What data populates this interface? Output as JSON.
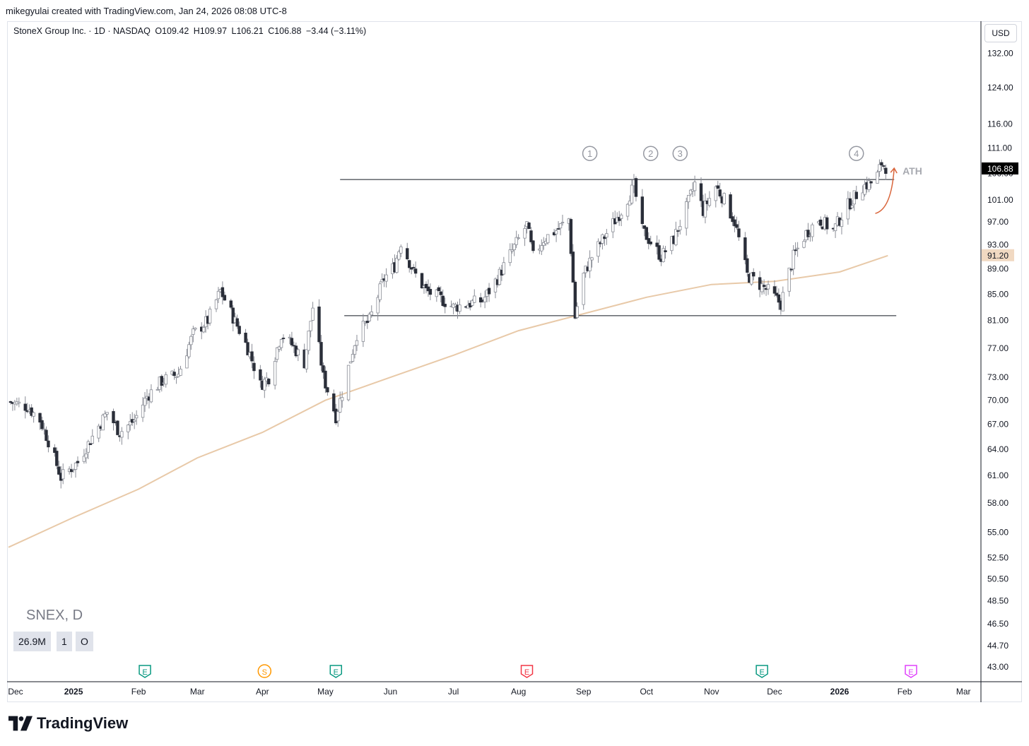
{
  "header": {
    "attribution": "mikegyulai created with TradingView.com, Jan 24, 2026 08:08 UTC-8"
  },
  "legend": {
    "symbol": "StoneX Group Inc. · 1D · NASDAQ",
    "open": "O109.42",
    "high": "H109.97",
    "low": "L106.21",
    "close": "C106.88",
    "change": "−3.44 (−3.11%)"
  },
  "currency_button": "USD",
  "symbol_watermark": "SNEX, D",
  "stats": {
    "volume": "26.9M",
    "one": "1",
    "zero": "O"
  },
  "footer": {
    "brand": "TradingView"
  },
  "colors": {
    "candle_up_fill": "#ffffff",
    "candle_down_fill": "#2a2e39",
    "candle_outline": "#8a8d96",
    "ma_line": "#e8c9a8",
    "level_lines": "#131722",
    "arrow": "#d9653b",
    "circle_labels": "#9598a1",
    "earnings_green": "#089981",
    "earnings_red": "#f23645",
    "split_orange": "#ff9800",
    "earnings_purple": "#e040fb"
  },
  "chart_data": {
    "type": "candlestick",
    "title": "StoneX Group Inc. · 1D · NASDAQ",
    "y_axis_labels": [
      "132.00",
      "124.00",
      "116.00",
      "111.00",
      "106.00",
      "101.00",
      "97.00",
      "93.00",
      "89.00",
      "85.00",
      "81.00",
      "77.00",
      "73.00",
      "70.00",
      "67.00",
      "64.00",
      "61.00",
      "58.00",
      "55.00",
      "52.50",
      "50.50",
      "48.50",
      "46.50",
      "44.70",
      "43.00"
    ],
    "x_axis_labels": [
      "Dec",
      "2025",
      "Feb",
      "Mar",
      "Apr",
      "May",
      "Jun",
      "Jul",
      "Aug",
      "Sep",
      "Oct",
      "Nov",
      "Dec",
      "2026",
      "Feb",
      "Mar"
    ],
    "bold_x_labels": [
      "2025",
      "2026"
    ],
    "y_scale": "log",
    "ylim": [
      42,
      140
    ],
    "x_range": [
      "2024-12-01",
      "2026-03-08"
    ],
    "last_price": {
      "value": 106.88,
      "label": "106.88"
    },
    "ma_value": {
      "value": 91.2,
      "label": "91.20"
    },
    "resistance_level": 104.8,
    "support_level": 81.7,
    "ath_label": "ATH",
    "touch_labels": [
      "1",
      "2",
      "3",
      "4"
    ],
    "events": [
      {
        "date": "2025-02-04",
        "glyph": "E",
        "color": "green"
      },
      {
        "date": "2025-04-02",
        "glyph": "S",
        "color": "orange"
      },
      {
        "date": "2025-05-06",
        "glyph": "E",
        "color": "green"
      },
      {
        "date": "2025-08-05",
        "glyph": "E",
        "color": "red"
      },
      {
        "date": "2025-11-25",
        "glyph": "E",
        "color": "green"
      },
      {
        "date": "2026-02-04",
        "glyph": "E",
        "color": "purple"
      }
    ],
    "price_path": [
      [
        "2024-12-01",
        69.8
      ],
      [
        "2024-12-10",
        69.2
      ],
      [
        "2024-12-16",
        67.5
      ],
      [
        "2024-12-20",
        65
      ],
      [
        "2024-12-26",
        60.8
      ],
      [
        "2025-01-03",
        62.5
      ],
      [
        "2025-01-10",
        65.5
      ],
      [
        "2025-01-17",
        68.5
      ],
      [
        "2025-01-23",
        66
      ],
      [
        "2025-01-30",
        67.5
      ],
      [
        "2025-02-05",
        70.5
      ],
      [
        "2025-02-12",
        72.5
      ],
      [
        "2025-02-20",
        73.5
      ],
      [
        "2025-02-27",
        79
      ],
      [
        "2025-03-06",
        81
      ],
      [
        "2025-03-12",
        85.5
      ],
      [
        "2025-03-18",
        81.5
      ],
      [
        "2025-03-25",
        77
      ],
      [
        "2025-03-31",
        72
      ],
      [
        "2025-04-04",
        73
      ],
      [
        "2025-04-10",
        79
      ],
      [
        "2025-04-15",
        77.5
      ],
      [
        "2025-04-21",
        75
      ],
      [
        "2025-04-25",
        83
      ],
      [
        "2025-04-30",
        73
      ],
      [
        "2025-05-06",
        68
      ],
      [
        "2025-05-10",
        72
      ],
      [
        "2025-05-16",
        79
      ],
      [
        "2025-05-22",
        81
      ],
      [
        "2025-05-29",
        87.5
      ],
      [
        "2025-06-03",
        89.5
      ],
      [
        "2025-06-06",
        93.5
      ],
      [
        "2025-06-12",
        88.5
      ],
      [
        "2025-06-18",
        85.5
      ],
      [
        "2025-06-24",
        84.5
      ],
      [
        "2025-07-01",
        83
      ],
      [
        "2025-07-08",
        83.5
      ],
      [
        "2025-07-15",
        84
      ],
      [
        "2025-07-22",
        87.5
      ],
      [
        "2025-07-29",
        92
      ],
      [
        "2025-08-05",
        96.5
      ],
      [
        "2025-08-08",
        91
      ],
      [
        "2025-08-13",
        94
      ],
      [
        "2025-08-19",
        95.5
      ],
      [
        "2025-08-25",
        97.5
      ],
      [
        "2025-08-28",
        81.5
      ],
      [
        "2025-09-01",
        88
      ],
      [
        "2025-09-05",
        91
      ],
      [
        "2025-09-12",
        95
      ],
      [
        "2025-09-19",
        99
      ],
      [
        "2025-09-25",
        103.5
      ],
      [
        "2025-09-29",
        95.5
      ],
      [
        "2025-10-03",
        93.5
      ],
      [
        "2025-10-08",
        91
      ],
      [
        "2025-10-14",
        94
      ],
      [
        "2025-10-20",
        99.5
      ],
      [
        "2025-10-24",
        104
      ],
      [
        "2025-10-28",
        99
      ],
      [
        "2025-11-03",
        103.5
      ],
      [
        "2025-11-07",
        101
      ],
      [
        "2025-11-12",
        97
      ],
      [
        "2025-11-18",
        88
      ],
      [
        "2025-11-24",
        86.5
      ],
      [
        "2025-11-28",
        85.5
      ],
      [
        "2025-12-04",
        83.5
      ],
      [
        "2025-12-10",
        91
      ],
      [
        "2025-12-16",
        95
      ],
      [
        "2025-12-22",
        97.5
      ],
      [
        "2025-12-29",
        95.5
      ],
      [
        "2026-01-05",
        100
      ],
      [
        "2026-01-12",
        103.5
      ],
      [
        "2026-01-18",
        104.5
      ],
      [
        "2026-01-21",
        108
      ],
      [
        "2026-01-24",
        106.9
      ]
    ],
    "ma_path": [
      [
        "2024-12-01",
        53.5
      ],
      [
        "2025-01-01",
        56.5
      ],
      [
        "2025-02-01",
        59.5
      ],
      [
        "2025-03-01",
        63
      ],
      [
        "2025-04-01",
        66
      ],
      [
        "2025-05-01",
        70
      ],
      [
        "2025-06-01",
        73
      ],
      [
        "2025-07-01",
        76
      ],
      [
        "2025-08-01",
        79.5
      ],
      [
        "2025-09-01",
        82
      ],
      [
        "2025-10-01",
        84.5
      ],
      [
        "2025-11-01",
        86.5
      ],
      [
        "2025-12-01",
        87
      ],
      [
        "2026-01-01",
        88.5
      ],
      [
        "2026-01-24",
        91.2
      ]
    ]
  }
}
